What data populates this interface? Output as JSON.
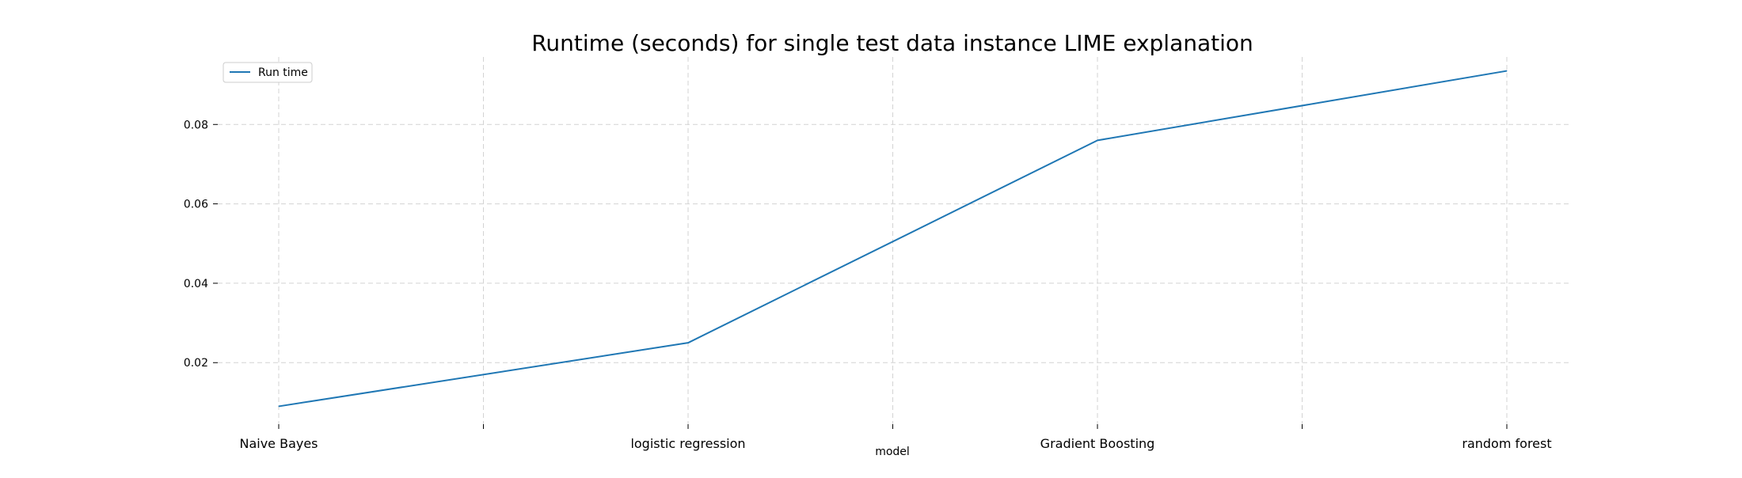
{
  "chart_data": {
    "type": "line",
    "title": "Runtime (seconds) for single test data instance LIME explanation",
    "xlabel": "model",
    "ylabel": "",
    "categories": [
      "Naive Bayes",
      "logistic regression",
      "Gradient Boosting",
      "random forest"
    ],
    "series": [
      {
        "name": "Run time",
        "color": "#1f77b4",
        "values": [
          0.009,
          0.025,
          0.076,
          0.0935
        ]
      }
    ],
    "yticks": [
      0.02,
      0.04,
      0.06,
      0.08
    ],
    "ytick_labels": [
      "0.02",
      "0.04",
      "0.06",
      "0.08"
    ],
    "ylim": [
      0.0045,
      0.097
    ],
    "grid": true,
    "grid_color": "#d3d3d3",
    "legend_position": "top-left",
    "minor_xticks": true
  }
}
